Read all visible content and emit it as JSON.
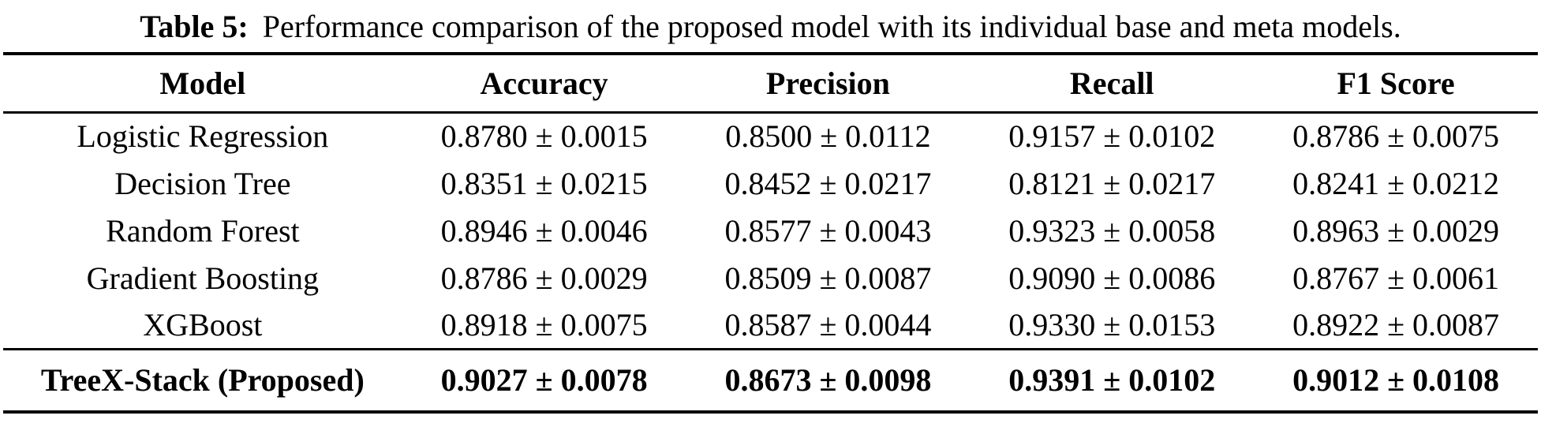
{
  "caption": {
    "label": "Table 5:",
    "text": "Performance comparison of the proposed model with its individual base and meta models."
  },
  "table": {
    "headers": {
      "model": "Model",
      "accuracy": "Accuracy",
      "precision": "Precision",
      "recall": "Recall",
      "f1": "F1 Score"
    },
    "rows": [
      {
        "model": "Logistic Regression",
        "accuracy": "0.8780 ± 0.0015",
        "precision": "0.8500 ± 0.0112",
        "recall": "0.9157 ± 0.0102",
        "f1": "0.8786 ± 0.0075"
      },
      {
        "model": "Decision Tree",
        "accuracy": "0.8351 ± 0.0215",
        "precision": "0.8452 ± 0.0217",
        "recall": "0.8121 ± 0.0217",
        "f1": "0.8241 ± 0.0212"
      },
      {
        "model": "Random Forest",
        "accuracy": "0.8946 ± 0.0046",
        "precision": "0.8577 ± 0.0043",
        "recall": "0.9323 ± 0.0058",
        "f1": "0.8963 ± 0.0029"
      },
      {
        "model": "Gradient Boosting",
        "accuracy": "0.8786 ± 0.0029",
        "precision": "0.8509 ± 0.0087",
        "recall": "0.9090 ± 0.0086",
        "f1": "0.8767 ± 0.0061"
      },
      {
        "model": "XGBoost",
        "accuracy": "0.8918 ± 0.0075",
        "precision": "0.8587 ± 0.0044",
        "recall": "0.9330 ± 0.0153",
        "f1": "0.8922 ± 0.0087"
      }
    ],
    "proposed_row": {
      "model": "TreeX-Stack (Proposed)",
      "accuracy": "0.9027 ± 0.0078",
      "precision": "0.8673 ± 0.0098",
      "recall": "0.9391 ± 0.0102",
      "f1": "0.9012 ± 0.0108"
    }
  },
  "colors": {
    "text": "#000000",
    "background": "#ffffff",
    "rule": "#000000"
  }
}
